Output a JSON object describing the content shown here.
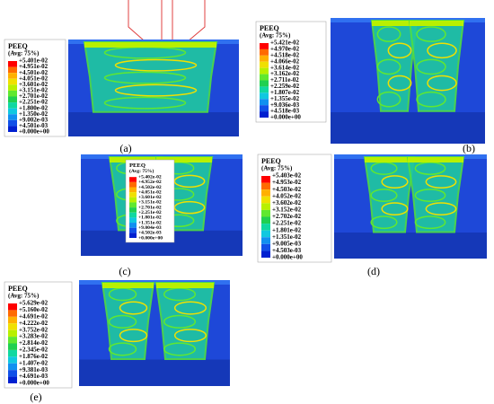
{
  "panels": [
    {
      "caption": "(a)",
      "legend": {
        "title": "PEEQ",
        "subtitle": "(Avg: 75%)",
        "labels": [
          "+5.401e-02",
          "+4.951e-02",
          "+4.501e-02",
          "+4.051e-02",
          "+3.601e-02",
          "+3.151e-02",
          "+2.701e-02",
          "+2.251e-02",
          "+1.800e-02",
          "+1.350e-02",
          "+9.002e-03",
          "+4.501e-03",
          "+0.000e+00"
        ]
      }
    },
    {
      "caption": "(b)",
      "legend": {
        "title": "PEEQ",
        "subtitle": "(Avg: 75%)",
        "labels": [
          "+5.421e-02",
          "+4.970e-02",
          "+4.518e-02",
          "+4.066e-02",
          "+3.614e-02",
          "+3.162e-02",
          "+2.711e-02",
          "+2.259e-02",
          "+1.807e-02",
          "+1.355e-02",
          "+9.036e-03",
          "+4.518e-03",
          "+0.000e+00"
        ]
      }
    },
    {
      "caption": "(c)",
      "legend": {
        "title": "PEEQ",
        "subtitle": "(Avg: 75%)",
        "labels": [
          "+5.402e-02",
          "+4.952e-02",
          "+4.502e-02",
          "+4.051e-02",
          "+3.601e-02",
          "+3.151e-02",
          "+2.701e-02",
          "+2.251e-02",
          "+1.801e-02",
          "+1.351e-02",
          "+9.004e-03",
          "+4.502e-03",
          "+0.000e+00"
        ]
      }
    },
    {
      "caption": "(d)",
      "legend": {
        "title": "PEEQ",
        "subtitle": "(Avg: 75%)",
        "labels": [
          "+5.403e-02",
          "+4.953e-02",
          "+4.503e-02",
          "+4.052e-02",
          "+3.602e-02",
          "+3.152e-02",
          "+2.702e-02",
          "+2.251e-02",
          "+1.801e-02",
          "+1.351e-02",
          "+9.005e-03",
          "+4.503e-03",
          "+0.000e+00"
        ]
      }
    },
    {
      "caption": "(e)",
      "legend": {
        "title": "PEEQ",
        "subtitle": "(Avg: 75%)",
        "labels": [
          "+5.629e-02",
          "+5.160e-02",
          "+4.691e-02",
          "+4.222e-02",
          "+3.752e-02",
          "+3.283e-02",
          "+2.814e-02",
          "+2.345e-02",
          "+1.876e-02",
          "+1.407e-02",
          "+9.381e-03",
          "+4.691e-03",
          "+0.000e+00"
        ]
      }
    }
  ]
}
